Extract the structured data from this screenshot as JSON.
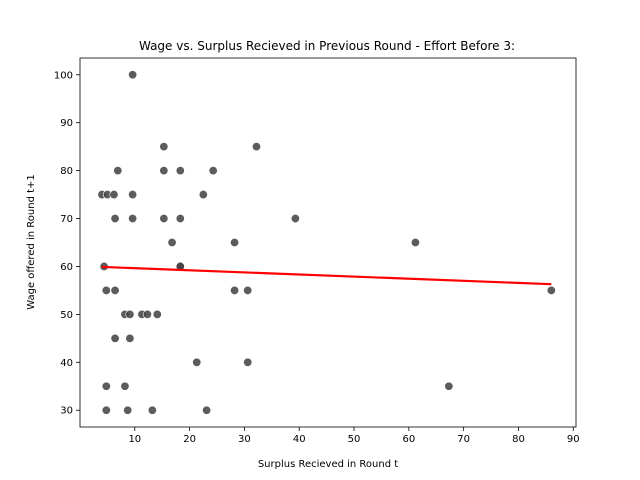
{
  "chart_data": {
    "type": "scatter",
    "title": "Wage vs. Surplus Recieved in Previous Round - Effort Before 3:",
    "xlabel": "Surplus Recieved in Round t",
    "ylabel": "Wage offered in Round t+1",
    "xlim": [
      0,
      90.5
    ],
    "ylim": [
      26.5,
      103.5
    ],
    "xticks": [
      10,
      20,
      30,
      40,
      50,
      60,
      70,
      80,
      90
    ],
    "yticks": [
      30,
      40,
      50,
      60,
      70,
      80,
      90,
      100
    ],
    "grid": false,
    "legend": "none",
    "colors": {
      "points": "#404040",
      "fit_line": "#ff0000"
    },
    "points": [
      {
        "x": 4.0,
        "y": 75
      },
      {
        "x": 5.0,
        "y": 75
      },
      {
        "x": 6.2,
        "y": 75
      },
      {
        "x": 9.6,
        "y": 75
      },
      {
        "x": 6.9,
        "y": 80
      },
      {
        "x": 9.6,
        "y": 100
      },
      {
        "x": 6.4,
        "y": 70
      },
      {
        "x": 9.6,
        "y": 70
      },
      {
        "x": 4.4,
        "y": 60
      },
      {
        "x": 4.8,
        "y": 55
      },
      {
        "x": 6.4,
        "y": 55
      },
      {
        "x": 8.2,
        "y": 50
      },
      {
        "x": 9.1,
        "y": 50
      },
      {
        "x": 11.3,
        "y": 50
      },
      {
        "x": 12.3,
        "y": 50
      },
      {
        "x": 14.1,
        "y": 50
      },
      {
        "x": 6.4,
        "y": 45
      },
      {
        "x": 9.1,
        "y": 45
      },
      {
        "x": 4.8,
        "y": 35
      },
      {
        "x": 8.2,
        "y": 35
      },
      {
        "x": 4.8,
        "y": 30
      },
      {
        "x": 8.7,
        "y": 30
      },
      {
        "x": 13.2,
        "y": 30
      },
      {
        "x": 15.3,
        "y": 85
      },
      {
        "x": 15.3,
        "y": 80
      },
      {
        "x": 18.3,
        "y": 80
      },
      {
        "x": 15.3,
        "y": 70
      },
      {
        "x": 18.3,
        "y": 70
      },
      {
        "x": 16.8,
        "y": 65
      },
      {
        "x": 18.3,
        "y": 60
      },
      {
        "x": 18.3,
        "y": 60
      },
      {
        "x": 24.3,
        "y": 80
      },
      {
        "x": 22.5,
        "y": 75
      },
      {
        "x": 21.3,
        "y": 40
      },
      {
        "x": 23.1,
        "y": 30
      },
      {
        "x": 32.2,
        "y": 85
      },
      {
        "x": 28.2,
        "y": 65
      },
      {
        "x": 28.2,
        "y": 55
      },
      {
        "x": 30.6,
        "y": 55
      },
      {
        "x": 30.6,
        "y": 40
      },
      {
        "x": 39.3,
        "y": 70
      },
      {
        "x": 61.2,
        "y": 65
      },
      {
        "x": 67.3,
        "y": 35
      },
      {
        "x": 86.0,
        "y": 55
      }
    ],
    "fit_line": {
      "x": [
        4.0,
        86.0
      ],
      "y": [
        59.9,
        56.3
      ]
    }
  }
}
